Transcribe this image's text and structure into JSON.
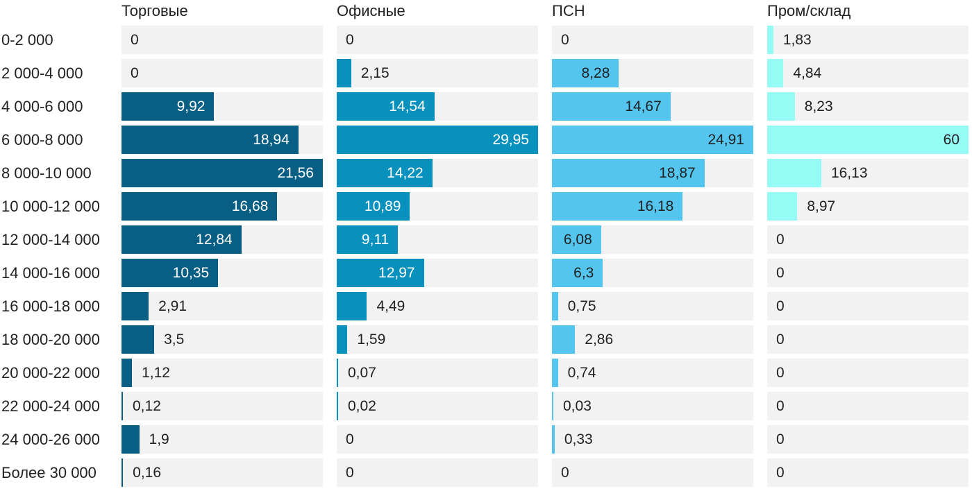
{
  "chart_data": {
    "type": "bar",
    "orientation": "horizontal",
    "title": "",
    "xlabel": "",
    "ylabel": "",
    "value_format": "decimal-comma (ru)",
    "categories": [
      "0-2 000",
      "2 000-4 000",
      "4 000-6 000",
      "6 000-8 000",
      "8 000-10 000",
      "10 000-12 000",
      "12 000-14 000",
      "14 000-16 000",
      "16 000-18 000",
      "18 000-20 000",
      "20 000-22 000",
      "22 000-24 000",
      "24 000-26 000",
      "Более 30 000"
    ],
    "series": [
      {
        "name": "Торговые",
        "bar_color": "#095e84",
        "label_color_on_bar": "#ffffff",
        "values": [
          0,
          0,
          9.92,
          18.94,
          21.56,
          16.68,
          12.84,
          10.35,
          2.91,
          3.5,
          1.12,
          0.12,
          1.9,
          0.16
        ],
        "display_values": [
          "0",
          "0",
          "9,92",
          "18,94",
          "21,56",
          "16,68",
          "12,84",
          "10,35",
          "2,91",
          "3,5",
          "1,12",
          "0,12",
          "1,9",
          "0,16"
        ]
      },
      {
        "name": "Офисные",
        "bar_color": "#0991bd",
        "label_color_on_bar": "#ffffff",
        "values": [
          0,
          2.15,
          14.54,
          29.95,
          14.22,
          10.89,
          9.11,
          12.97,
          4.49,
          1.59,
          0.07,
          0.02,
          0,
          0
        ],
        "display_values": [
          "0",
          "2,15",
          "14,54",
          "29,95",
          "14,22",
          "10,89",
          "9,11",
          "12,97",
          "4,49",
          "1,59",
          "0,07",
          "0,02",
          "0",
          "0"
        ]
      },
      {
        "name": "ПСН",
        "bar_color": "#54c5ef",
        "label_color_on_bar": "#212121",
        "values": [
          0,
          8.28,
          14.67,
          24.91,
          18.87,
          16.18,
          6.08,
          6.3,
          0.75,
          2.86,
          0.74,
          0.03,
          0.33,
          0
        ],
        "display_values": [
          "0",
          "8,28",
          "14,67",
          "24,91",
          "18,87",
          "16,18",
          "6,08",
          "6,3",
          "0,75",
          "2,86",
          "0,74",
          "0,03",
          "0,33",
          "0"
        ]
      },
      {
        "name": "Пром/склад",
        "bar_color": "#94fbf5",
        "label_color_on_bar": "#212121",
        "values": [
          1.83,
          4.84,
          8.23,
          60,
          16.13,
          8.97,
          0,
          0,
          0,
          0,
          0,
          0,
          0,
          0
        ],
        "display_values": [
          "1,83",
          "4,84",
          "8,23",
          "60",
          "16,13",
          "8,97",
          "0",
          "0",
          "0",
          "0",
          "0",
          "0",
          "0",
          "0"
        ]
      }
    ],
    "layout": {
      "scaling": "each column scaled independently so its max value fills the full track width",
      "column_max_values": [
        21.56,
        29.95,
        24.91,
        60
      ],
      "track_color": "#f2f2f2",
      "text_color": "#212121",
      "grid": false,
      "legend": "column headers on top"
    }
  }
}
